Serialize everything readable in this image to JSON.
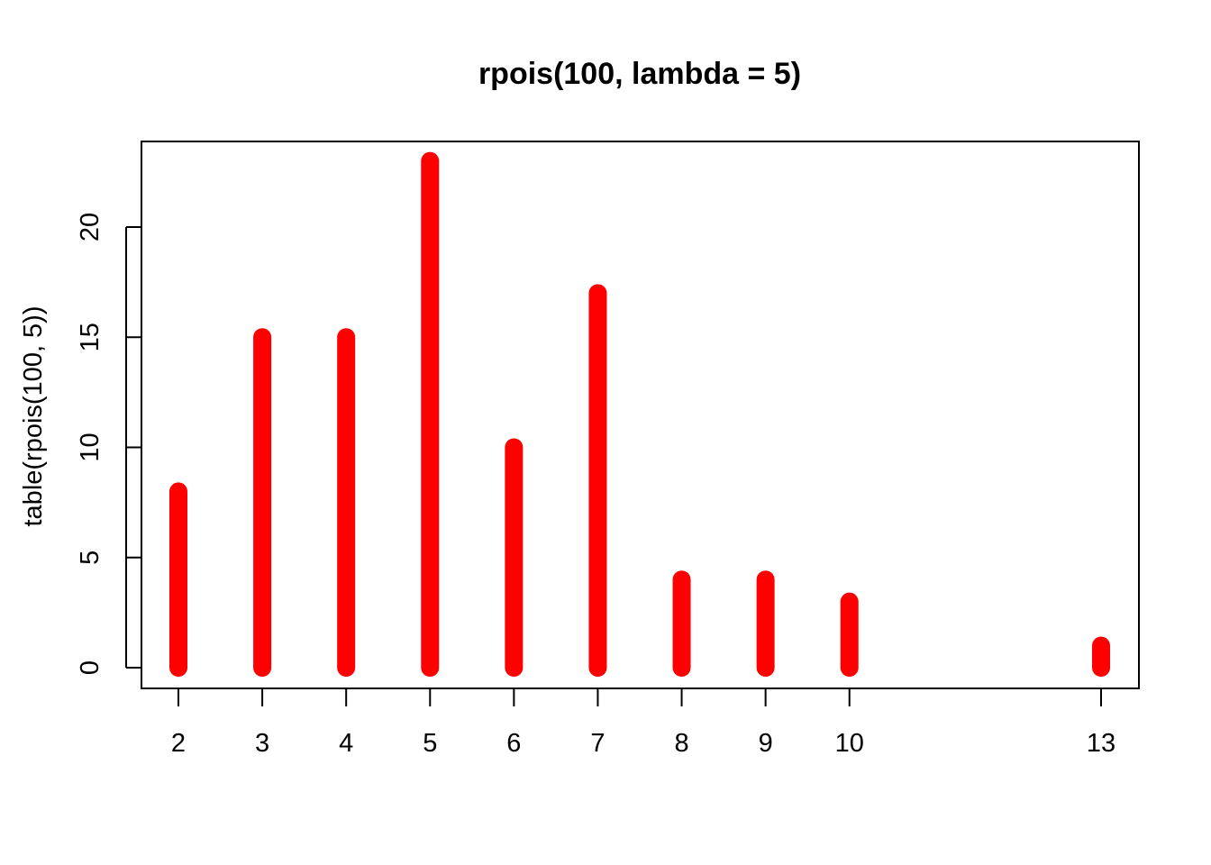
{
  "chart_data": {
    "type": "bar",
    "title": "rpois(100, lambda = 5)",
    "xlabel": "",
    "ylabel": "table(rpois(100, 5))",
    "x": [
      2,
      3,
      4,
      5,
      6,
      7,
      8,
      9,
      10,
      13
    ],
    "values": [
      8,
      15,
      15,
      23,
      10,
      17,
      4,
      4,
      3,
      1
    ],
    "x_tick_labels": [
      "2",
      "3",
      "4",
      "5",
      "6",
      "7",
      "8",
      "9",
      "10",
      "13"
    ],
    "y_ticks": [
      0,
      5,
      10,
      15,
      20
    ],
    "y_tick_labels": [
      "0",
      "5",
      "10",
      "15",
      "20"
    ],
    "ylim": [
      0,
      23
    ],
    "grid": false,
    "legend": "none",
    "bar_color": "#ff0000",
    "axis_color": "#000000"
  }
}
